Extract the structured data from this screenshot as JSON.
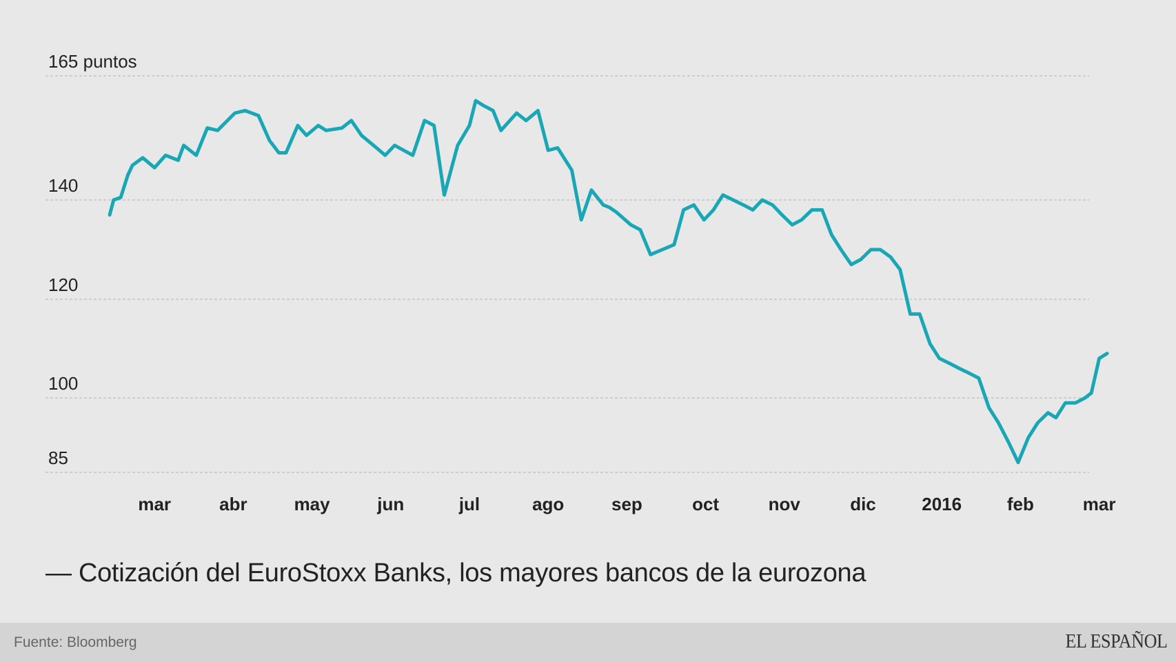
{
  "chart_data": {
    "type": "line",
    "title": "Cotización del EuroStoxx Banks, los mayores bancos de la eurozona",
    "caption": "— Cotización del EuroStoxx Banks, los mayores bancos de la eurozona",
    "ylim": [
      85,
      165
    ],
    "y_unit": "puntos",
    "y_ticks": [
      {
        "value": 165,
        "label": "165 puntos"
      },
      {
        "value": 140,
        "label": "140"
      },
      {
        "value": 120,
        "label": "120"
      },
      {
        "value": 100,
        "label": "100"
      },
      {
        "value": 85,
        "label": "85"
      }
    ],
    "x_ticks": [
      {
        "pos": 1,
        "label": "mar"
      },
      {
        "pos": 2,
        "label": "abr"
      },
      {
        "pos": 3,
        "label": "may"
      },
      {
        "pos": 4,
        "label": "jun"
      },
      {
        "pos": 5,
        "label": "jul"
      },
      {
        "pos": 6,
        "label": "ago"
      },
      {
        "pos": 7,
        "label": "sep"
      },
      {
        "pos": 8,
        "label": "oct"
      },
      {
        "pos": 9,
        "label": "nov"
      },
      {
        "pos": 10,
        "label": "dic"
      },
      {
        "pos": 11,
        "label": "2016"
      },
      {
        "pos": 12,
        "label": "feb"
      },
      {
        "pos": 13,
        "label": "mar"
      }
    ],
    "grid": true,
    "line_color": "#19a7b5",
    "series": [
      {
        "x": [
          0.43,
          0.48,
          0.57,
          0.66,
          0.72,
          0.85,
          1.0,
          1.14,
          1.3,
          1.37,
          1.53,
          1.67,
          1.8,
          2.02,
          2.15,
          2.32,
          2.46,
          2.58,
          2.67,
          2.82,
          2.93,
          3.08,
          3.18,
          3.38,
          3.5,
          3.63,
          3.82,
          3.93,
          4.05,
          4.28,
          4.43,
          4.55,
          4.68,
          4.85,
          5.0,
          5.08,
          5.18,
          5.3,
          5.4,
          5.6,
          5.72,
          5.87,
          6.0,
          6.12,
          6.3,
          6.42,
          6.55,
          6.7,
          6.78,
          6.87,
          7.05,
          7.17,
          7.3,
          7.45,
          7.6,
          7.72,
          7.85,
          7.98,
          8.1,
          8.22,
          8.35,
          8.48,
          8.6,
          8.72,
          8.85,
          8.97,
          9.1,
          9.22,
          9.35,
          9.48,
          9.6,
          9.72,
          9.85,
          9.97,
          10.1,
          10.22,
          10.35,
          10.47,
          10.6,
          10.72,
          10.85,
          10.97,
          11.1,
          11.22,
          11.35,
          11.47,
          11.6,
          11.72,
          11.85,
          11.97,
          12.1,
          12.22,
          12.35,
          12.45,
          12.57,
          12.7,
          12.82,
          12.9,
          13.0,
          13.1
        ],
        "y": [
          137,
          140,
          140.5,
          145,
          147,
          148.5,
          146.5,
          149,
          148,
          151,
          149,
          154.5,
          154,
          157.5,
          158,
          157,
          152,
          149.5,
          149.5,
          155,
          153,
          155,
          154,
          154.5,
          156,
          153,
          150.5,
          149,
          151,
          149,
          156,
          155,
          141,
          151,
          155,
          160,
          159,
          158,
          154,
          157.5,
          156,
          158,
          150,
          150.5,
          146,
          136,
          142,
          139,
          138.5,
          137.5,
          135,
          134,
          129,
          130,
          131,
          138,
          139,
          136,
          138,
          141,
          140,
          139,
          138,
          140,
          139,
          137,
          135,
          136,
          138,
          138,
          133,
          130,
          127,
          128,
          130,
          130,
          128.5,
          126,
          117,
          117,
          111,
          108,
          107,
          106,
          105,
          104,
          98,
          95,
          91,
          87,
          92,
          95,
          97,
          96,
          99,
          99,
          100,
          101,
          108,
          109
        ]
      }
    ]
  },
  "footer": {
    "source": "Fuente: Bloomberg",
    "brand": "EL ESPAÑOL"
  },
  "colors": {
    "background": "#e8e8e8",
    "footer_background": "#d4d4d4",
    "line": "#19a7b5",
    "grid": "#c4c4c4"
  }
}
